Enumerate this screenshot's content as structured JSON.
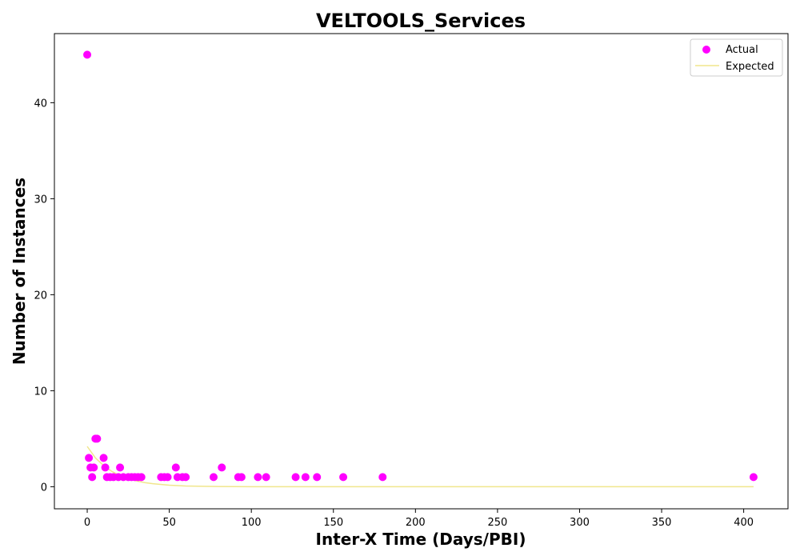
{
  "chart_data": {
    "type": "scatter",
    "title": "VELTOOLS_Services",
    "xlabel": "Inter-X Time (Days/PBI)",
    "ylabel": "Number of Instances",
    "xlim": [
      -20,
      427
    ],
    "ylim": [
      -2.3,
      47.2
    ],
    "xticks": [
      0,
      50,
      100,
      150,
      200,
      250,
      300,
      350,
      400
    ],
    "yticks": [
      0,
      10,
      20,
      30,
      40
    ],
    "legend_position": "top-right",
    "grid": false,
    "series": [
      {
        "name": "Actual",
        "kind": "scatter",
        "color": "#ff00ff",
        "x": [
          0,
          1,
          2,
          3,
          4,
          5,
          6,
          10,
          11,
          12,
          14,
          16,
          19,
          20,
          22,
          25,
          27,
          29,
          31,
          33,
          45,
          47,
          49,
          54,
          55,
          58,
          60,
          77,
          82,
          92,
          94,
          104,
          109,
          127,
          133,
          140,
          156,
          180,
          406
        ],
        "y": [
          45,
          3,
          2,
          1,
          2,
          5,
          5,
          3,
          2,
          1,
          1,
          1,
          1,
          2,
          1,
          1,
          1,
          1,
          1,
          1,
          1,
          1,
          1,
          2,
          1,
          1,
          1,
          1,
          2,
          1,
          1,
          1,
          1,
          1,
          1,
          1,
          1,
          1,
          1
        ]
      },
      {
        "name": "Expected",
        "kind": "line",
        "color": "#f0e68c",
        "x": [
          0,
          5,
          10,
          15,
          20,
          25,
          30,
          35,
          40,
          50,
          60,
          80,
          100,
          150,
          200,
          300,
          406
        ],
        "y": [
          4.2,
          3.0,
          2.2,
          1.6,
          1.15,
          0.83,
          0.6,
          0.43,
          0.31,
          0.16,
          0.08,
          0.02,
          0.005,
          0,
          0,
          0,
          0
        ]
      }
    ]
  }
}
